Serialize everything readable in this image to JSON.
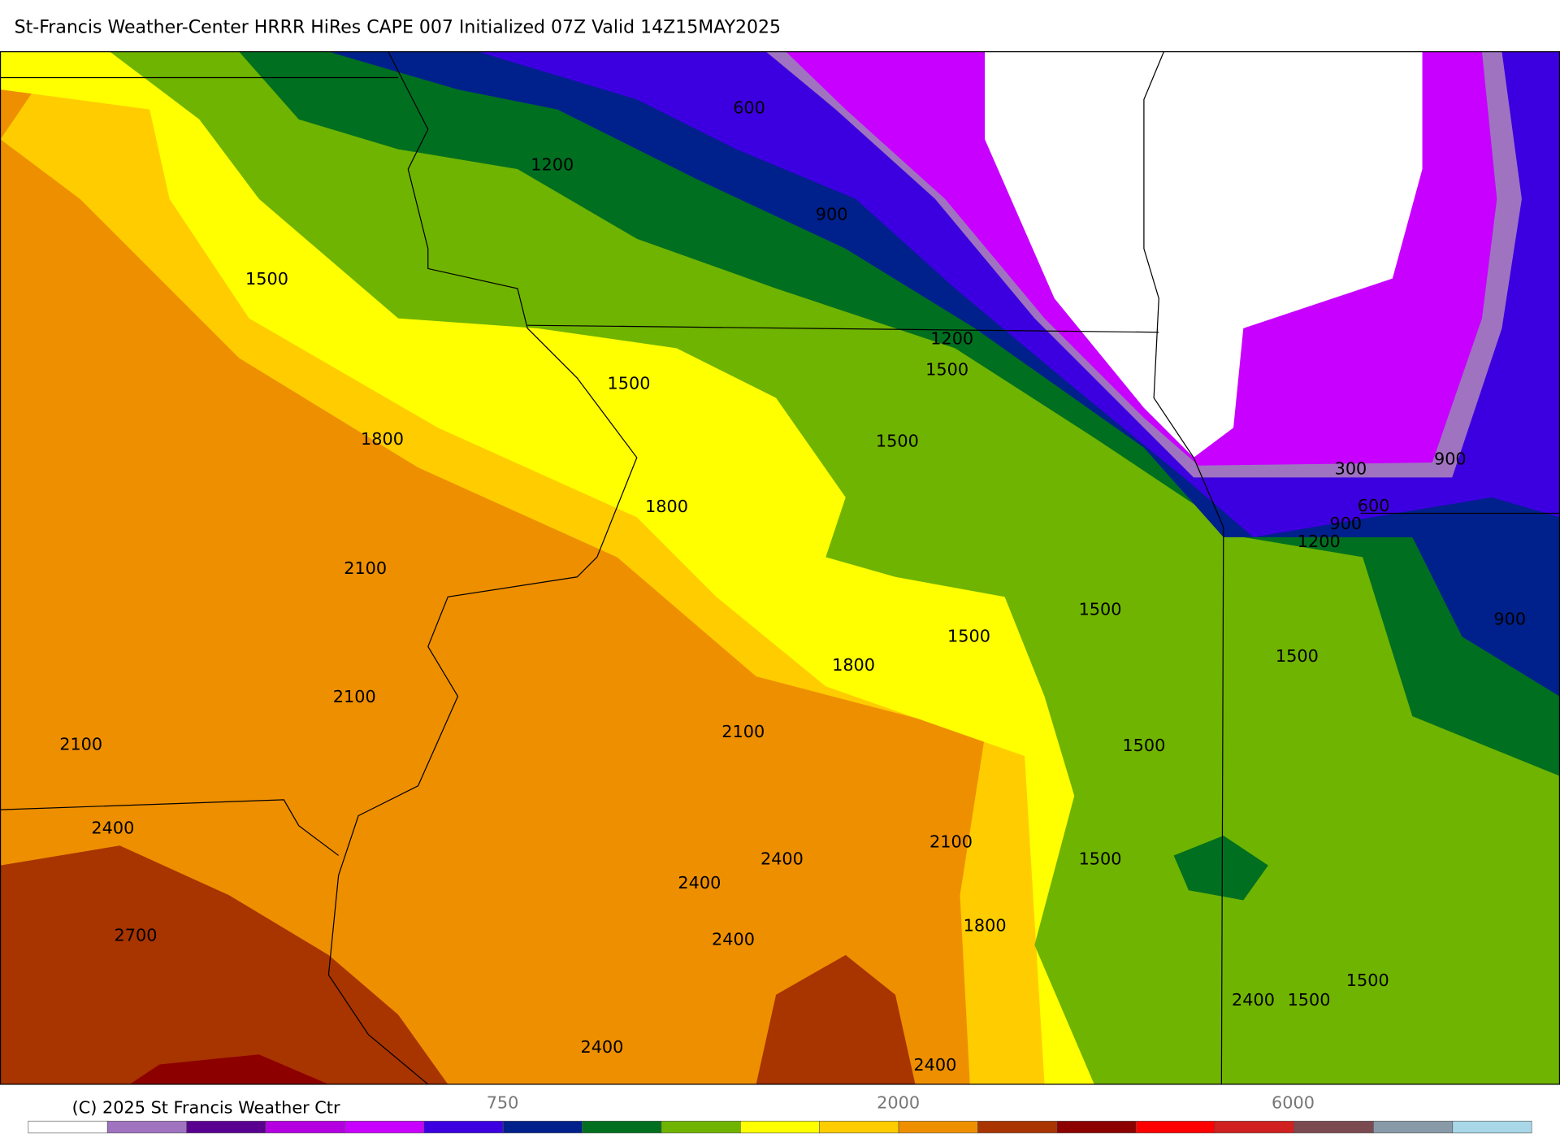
{
  "header": {
    "title": "St-Francis Weather-Center HRRR HiRes CAPE  007 Initialized  07Z Valid 14Z15MAY2025"
  },
  "map": {
    "contour_labels": [
      "600",
      "1200",
      "900",
      "1500",
      "1500",
      "1200",
      "1500",
      "1800",
      "1500",
      "1800",
      "2100",
      "1500",
      "1500",
      "1800",
      "2100",
      "2100",
      "2100",
      "1500",
      "1500",
      "2100",
      "2400",
      "2400",
      "2400",
      "2400",
      "2700",
      "2400",
      "2400",
      "1800",
      "1500",
      "1500",
      "2400",
      "300",
      "600",
      "900",
      "1200",
      "900",
      "900",
      "1500"
    ]
  },
  "colorbar": {
    "colors": [
      "#ffffff",
      "#9f73c0",
      "#5a0090",
      "#b400e0",
      "#c800ff",
      "#3c00e0",
      "#00208c",
      "#007020",
      "#6fb400",
      "#ffff00",
      "#ffcc00",
      "#ee8f00",
      "#a83400",
      "#8c0000",
      "#ff0000",
      "#d02020",
      "#7b4a50",
      "#8899a8",
      "#a8d8e8"
    ],
    "labels": [
      "750",
      "2000",
      "6000"
    ]
  },
  "footer": {
    "copyright": "(C) 2025 St Francis Weather Ctr"
  }
}
